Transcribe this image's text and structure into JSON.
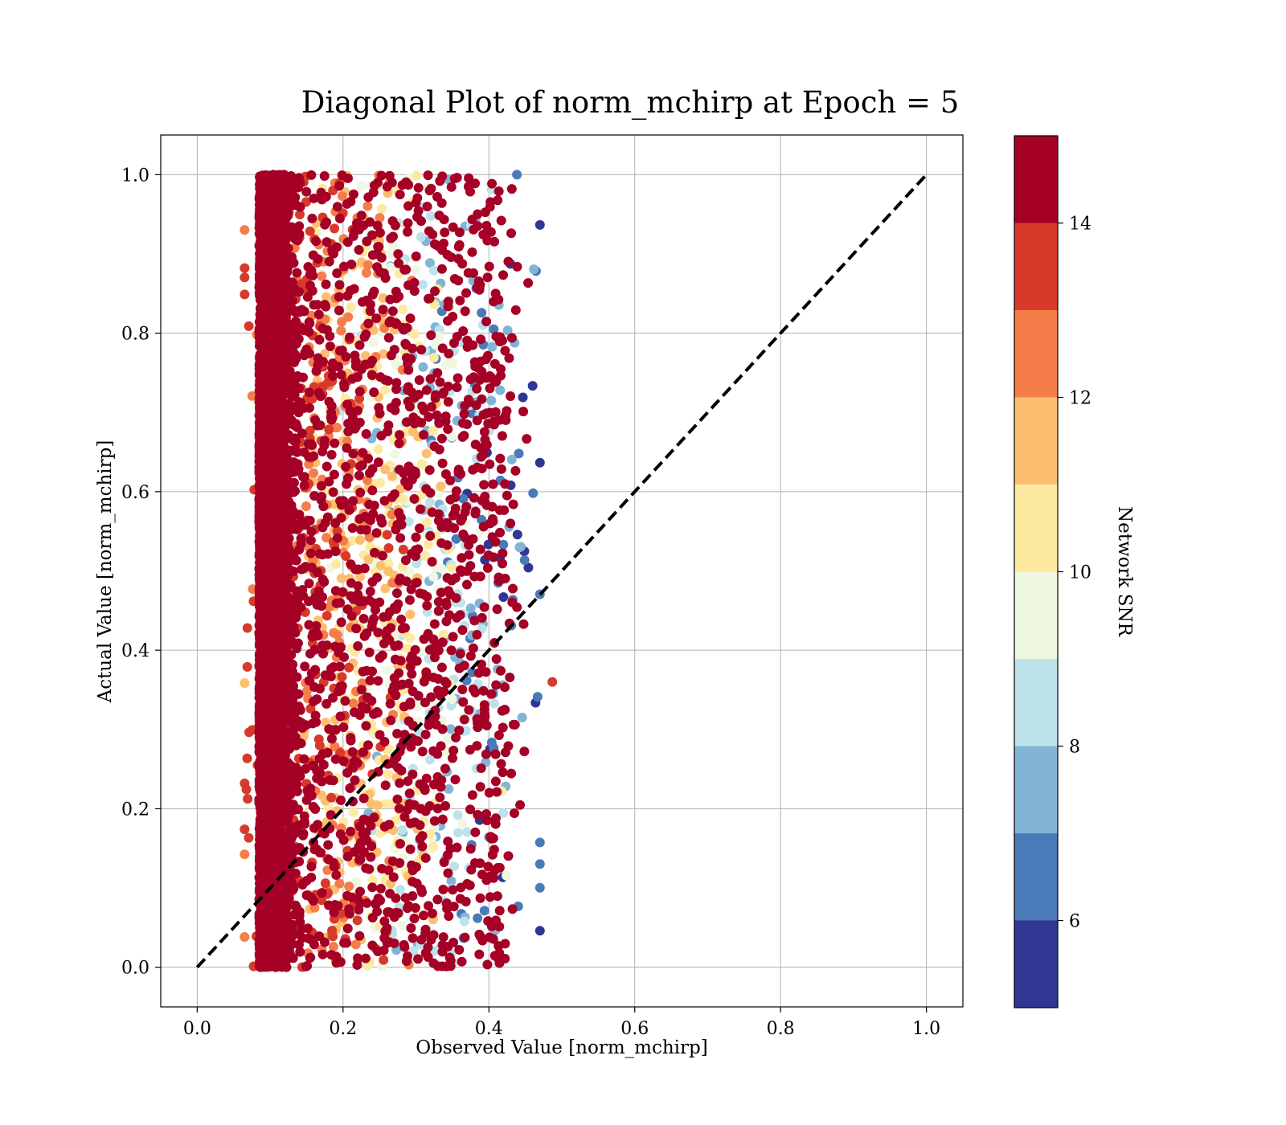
{
  "chart_data": {
    "type": "scatter",
    "title": "Diagonal Plot of norm_mchirp at Epoch = 5",
    "xlabel": "Observed Value [norm_mchirp]",
    "ylabel": "Actual Value [norm_mchirp]",
    "xlim": [
      -0.05,
      1.05
    ],
    "ylim": [
      -0.05,
      1.05
    ],
    "xticks": [
      0.0,
      0.2,
      0.4,
      0.6,
      0.8,
      1.0
    ],
    "yticks": [
      0.0,
      0.2,
      0.4,
      0.6,
      0.8,
      1.0
    ],
    "tick_labels": [
      "0.0",
      "0.2",
      "0.4",
      "0.6",
      "0.8",
      "1.0"
    ],
    "grid": true,
    "diagonal": {
      "x": [
        0.0,
        1.0
      ],
      "y": [
        0.0,
        1.0
      ],
      "style": "dashed",
      "color": "#000000"
    },
    "colorbar": {
      "label": "Network SNR",
      "range": [
        5,
        15
      ],
      "ticks": [
        6,
        8,
        10,
        12,
        14
      ],
      "tick_labels": [
        "6",
        "8",
        "10",
        "12",
        "14"
      ],
      "bins": [
        {
          "from": 5,
          "to": 6,
          "color": "#313695"
        },
        {
          "from": 6,
          "to": 7,
          "color": "#4a7ab7"
        },
        {
          "from": 7,
          "to": 8,
          "color": "#81b4d6"
        },
        {
          "from": 8,
          "to": 9,
          "color": "#bde2ec"
        },
        {
          "from": 9,
          "to": 10,
          "color": "#eef7e0"
        },
        {
          "from": 10,
          "to": 11,
          "color": "#fee9a0"
        },
        {
          "from": 11,
          "to": 12,
          "color": "#fdbf6f"
        },
        {
          "from": 12,
          "to": 13,
          "color": "#f47d4a"
        },
        {
          "from": 13,
          "to": 14,
          "color": "#d73a2a"
        },
        {
          "from": 14,
          "to": 15,
          "color": "#a50026"
        }
      ]
    },
    "scatter_description_ranges": {
      "x_range": [
        0.06,
        0.49
      ],
      "y_range": [
        0.0,
        1.0
      ],
      "dense_high_snr_band_x": [
        0.06,
        0.12
      ]
    }
  }
}
